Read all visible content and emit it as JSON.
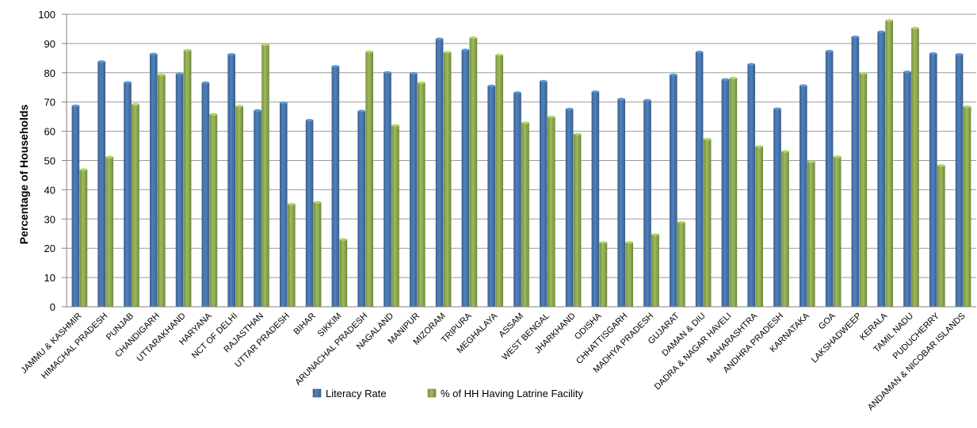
{
  "chart_data": {
    "type": "bar",
    "title": "",
    "xlabel": "",
    "ylabel": "Percentage of Households",
    "ylim": [
      0,
      100
    ],
    "yticks": [
      0,
      10,
      20,
      30,
      40,
      50,
      60,
      70,
      80,
      90,
      100
    ],
    "grid": true,
    "legend_position": "bottom",
    "categories": [
      "JAMMU & KASHMIR",
      "HIMACHAL PRADESH",
      "PUNJAB",
      "CHANDIGARH",
      "UTTARAKHAND",
      "HARYANA",
      "NCT OF DELHI",
      "RAJASTHAN",
      "UTTAR PRADESH",
      "BIHAR",
      "SIKKIM",
      "ARUNACHAL PRADESH",
      "NAGALAND",
      "MANIPUR",
      "MIZORAM",
      "TRIPURA",
      "MEGHALAYA",
      "ASSAM",
      "WEST BENGAL",
      "JHARKHAND",
      "ODISHA",
      "CHHATTISGARH",
      "MADHYA PRADESH",
      "GUJARAT",
      "DAMAN & DIU",
      "DADRA & NAGAR HAVELI",
      "MAHARASHTRA",
      "ANDHRA PRADESH",
      "KARNATAKA",
      "GOA",
      "LAKSHADWEEP",
      "KERALA",
      "TAMIL NADU",
      "PUDUCHERRY",
      "ANDAMAN & NICOBAR ISLANDS"
    ],
    "series": [
      {
        "name": "Literacy Rate",
        "color": "#4f81bd",
        "values": [
          68.7,
          83.8,
          76.7,
          86.4,
          79.6,
          76.6,
          86.3,
          67.1,
          69.7,
          63.8,
          82.2,
          66.9,
          80.1,
          79.8,
          91.6,
          87.8,
          75.5,
          73.2,
          77.1,
          67.6,
          73.5,
          71.0,
          70.6,
          79.3,
          87.1,
          77.7,
          82.9,
          67.7,
          75.6,
          87.4,
          92.3,
          94.0,
          80.3,
          86.6,
          86.3
        ]
      },
      {
        "name": "% of HH Having Latrine Facility",
        "color": "#9bbb59",
        "values": [
          46.9,
          51.2,
          69.2,
          79.3,
          87.7,
          65.8,
          68.6,
          89.6,
          35.1,
          35.7,
          23.0,
          87.2,
          62.0,
          76.6,
          87.0,
          92.0,
          86.1,
          62.9,
          64.9,
          59.0,
          22.0,
          22.0,
          24.7,
          28.9,
          57.3,
          78.2,
          54.8,
          53.1,
          49.6,
          51.3,
          79.8,
          97.9,
          95.3,
          48.3,
          68.4
        ]
      }
    ]
  }
}
